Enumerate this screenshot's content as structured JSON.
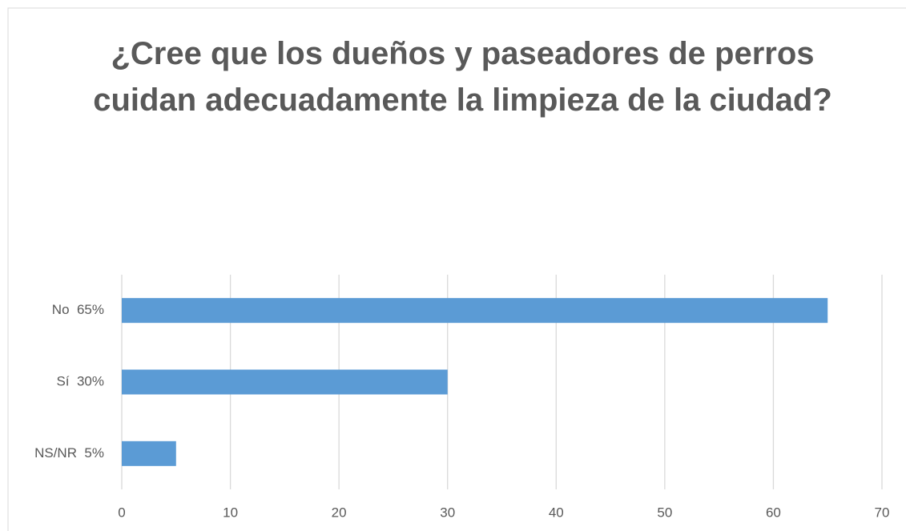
{
  "chart_data": {
    "type": "bar",
    "orientation": "horizontal",
    "title": "¿Cree que los dueños y paseadores de perros cuidan adecuadamente la limpieza de la ciudad?",
    "categories": [
      "No  65%",
      "Sí  30%",
      "NS/NR  5%"
    ],
    "values": [
      65,
      30,
      5
    ],
    "color": "#5b9bd5",
    "xlim": [
      0,
      70
    ],
    "xticks": [
      0,
      10,
      20,
      30,
      40,
      50,
      60,
      70
    ],
    "grid": true
  }
}
